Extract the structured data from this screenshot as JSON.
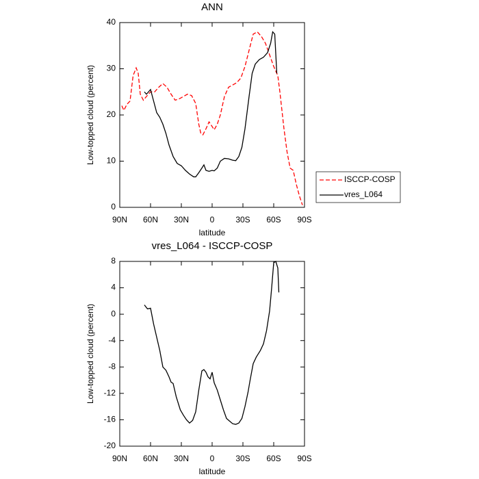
{
  "chart_data": [
    {
      "type": "line",
      "title": "ANN",
      "xlabel": "latitude",
      "ylabel": "Low-topped cloud (percent)",
      "xlim": [
        90,
        -90
      ],
      "ylim": [
        0,
        40
      ],
      "xticks": [
        {
          "value": 90,
          "label": "90N"
        },
        {
          "value": 60,
          "label": "60N"
        },
        {
          "value": 30,
          "label": "30N"
        },
        0,
        {
          "value": -30,
          "label": "30S"
        },
        {
          "value": -60,
          "label": "60S"
        },
        {
          "value": -90,
          "label": "90S"
        }
      ],
      "yticks": [
        0,
        10,
        20,
        30,
        40
      ],
      "legend": "right",
      "series": [
        {
          "name": "ISCCP-COSP",
          "color": "#ff0000",
          "dash": true,
          "x": [
            88,
            86,
            83,
            80,
            77,
            74,
            72,
            70,
            67,
            64,
            60,
            56,
            52,
            48,
            44,
            40,
            36,
            32,
            28,
            24,
            20,
            16,
            13,
            11,
            9,
            6,
            3,
            0,
            -2,
            -5,
            -8,
            -12,
            -16,
            -20,
            -24,
            -28,
            -32,
            -36,
            -40,
            -44,
            -48,
            -52,
            -56,
            -60,
            -64,
            -66,
            -68,
            -70,
            -73,
            -76,
            -79,
            -82,
            -85,
            -88
          ],
          "values": [
            22,
            21,
            22.3,
            23,
            28.5,
            30.2,
            29,
            24.5,
            23.2,
            24,
            25,
            25,
            26,
            26.8,
            26,
            24.5,
            23.2,
            23.5,
            24,
            24.5,
            24.2,
            22.5,
            18,
            16,
            15.7,
            17,
            18.5,
            17.5,
            16.8,
            18,
            20,
            24,
            26,
            26.5,
            27,
            28,
            30.5,
            34,
            37.5,
            38,
            37,
            35.5,
            33,
            30.5,
            28.5,
            25,
            21,
            17,
            12,
            8.5,
            8,
            5,
            2.5,
            0.5
          ]
        },
        {
          "name": "vres_L064",
          "color": "#000000",
          "dash": false,
          "x": [
            66,
            64,
            62,
            60,
            57,
            54,
            51,
            48,
            45,
            42,
            38,
            34,
            30,
            26,
            22,
            18,
            16,
            13,
            10,
            8,
            6,
            3,
            0,
            -2,
            -5,
            -8,
            -12,
            -16,
            -20,
            -23,
            -26,
            -29,
            -32,
            -36,
            -39,
            -42,
            -46,
            -50,
            -54,
            -57,
            -59,
            -61,
            -63
          ],
          "values": [
            25,
            24.5,
            25,
            25.5,
            23,
            20.5,
            19.5,
            18,
            16,
            13.5,
            11,
            9.5,
            9,
            8,
            7.2,
            6.6,
            6.6,
            7.5,
            8.5,
            9.2,
            8,
            7.8,
            8,
            7.9,
            8.5,
            10,
            10.6,
            10.5,
            10.2,
            10.1,
            11,
            13,
            17,
            24,
            29,
            31,
            32,
            32.5,
            33.5,
            35.5,
            38,
            37.5,
            29
          ]
        }
      ]
    },
    {
      "type": "line",
      "title": "vres_L064 - ISCCP-COSP",
      "xlabel": "latitude",
      "ylabel": "Low-topped cloud (percent)",
      "xlim": [
        90,
        -90
      ],
      "ylim": [
        -20,
        8
      ],
      "xticks": [
        {
          "value": 90,
          "label": "90N"
        },
        {
          "value": 60,
          "label": "60N"
        },
        {
          "value": 30,
          "label": "30N"
        },
        0,
        {
          "value": -30,
          "label": "30S"
        },
        {
          "value": -60,
          "label": "60S"
        },
        {
          "value": -90,
          "label": "90S"
        }
      ],
      "yticks": [
        -20,
        -16,
        -12,
        -8,
        -4,
        0,
        4,
        8
      ],
      "color": "#000000",
      "x": [
        66,
        63,
        60,
        57,
        54,
        51,
        48,
        45,
        42,
        40,
        38,
        35,
        31,
        28,
        25,
        22,
        19,
        16,
        13,
        10,
        8,
        6,
        4,
        2,
        0,
        -2,
        -5,
        -8,
        -11,
        -14,
        -17,
        -20,
        -23,
        -26,
        -29,
        -32,
        -35,
        -37,
        -40,
        -43,
        -47,
        -50,
        -53,
        -56,
        -58,
        -60,
        -62,
        -64,
        -65
      ],
      "values": [
        1.4,
        0.8,
        0.9,
        -1.5,
        -3.5,
        -5.5,
        -8,
        -8.5,
        -9.5,
        -10.3,
        -10.5,
        -12.5,
        -14.5,
        -15.3,
        -16,
        -16.5,
        -16.1,
        -14.8,
        -11.5,
        -8.6,
        -8.4,
        -8.8,
        -9.5,
        -9.8,
        -8.8,
        -10.4,
        -11.5,
        -13,
        -14.5,
        -15.8,
        -16.2,
        -16.6,
        -16.7,
        -16.5,
        -15.8,
        -14,
        -11.8,
        -10,
        -7.5,
        -6.5,
        -5.5,
        -4.5,
        -2.5,
        0.5,
        4,
        7.8,
        8,
        7,
        3.3
      ]
    }
  ]
}
